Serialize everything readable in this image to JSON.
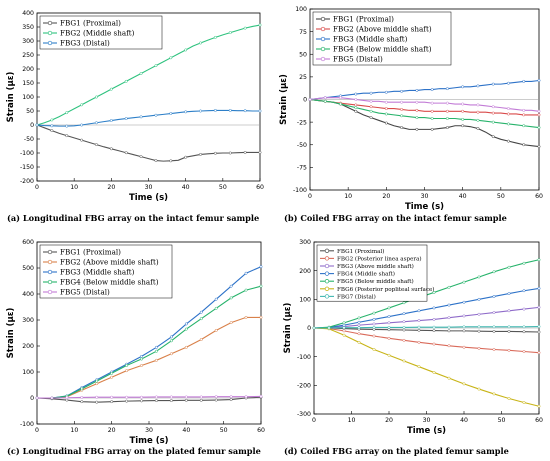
{
  "figure": {
    "captions": [
      "(a) Longitudinal FBG array on the intact femur sample",
      "(b) Coiled FBG array on the intact femur sample",
      "(c) Longitudinal FBG array on the plated femur sample",
      "(d) Coiled FBG array on the plated femur sample"
    ]
  },
  "chart_data": [
    {
      "type": "line",
      "xlabel": "Time (s)",
      "ylabel": "Strain (µε)",
      "xlim": [
        0,
        60
      ],
      "ylim": [
        -200,
        400
      ],
      "xticks": [
        0,
        10,
        20,
        30,
        40,
        50,
        60
      ],
      "yticks": [
        -200,
        -150,
        -100,
        -50,
        0,
        50,
        100,
        150,
        200,
        250,
        300,
        350,
        400
      ],
      "legend_position": "top-left",
      "legend_font_size": 7.2,
      "grid": false,
      "x": [
        0,
        2,
        4,
        6,
        8,
        10,
        12,
        14,
        16,
        18,
        20,
        22,
        24,
        26,
        28,
        30,
        32,
        34,
        36,
        38,
        40,
        42,
        44,
        46,
        48,
        50,
        52,
        54,
        56,
        58,
        60
      ],
      "series": [
        {
          "name": "FBG1 (Proximal)",
          "color": "#555555",
          "values": [
            0,
            -10,
            -20,
            -30,
            -38,
            -46,
            -54,
            -62,
            -70,
            -78,
            -85,
            -92,
            -99,
            -106,
            -113,
            -120,
            -127,
            -129,
            -128,
            -126,
            -115,
            -110,
            -105,
            -103,
            -101,
            -100,
            -100,
            -99,
            -98,
            -98,
            -98
          ]
        },
        {
          "name": "FBG2 (Middle shaft)",
          "color": "#2ec27e",
          "values": [
            0,
            8,
            18,
            30,
            44,
            58,
            72,
            86,
            100,
            114,
            128,
            142,
            156,
            170,
            184,
            198,
            212,
            226,
            240,
            254,
            268,
            282,
            293,
            303,
            313,
            322,
            330,
            338,
            346,
            352,
            357
          ]
        },
        {
          "name": "FBG3 (Distal)",
          "color": "#2d7fc8",
          "values": [
            0,
            -2,
            -3,
            -4,
            -4,
            -3,
            0,
            4,
            8,
            12,
            16,
            20,
            23,
            26,
            29,
            32,
            35,
            38,
            41,
            44,
            47,
            49,
            50,
            51,
            52,
            52,
            52,
            51,
            51,
            50,
            50
          ]
        }
      ]
    },
    {
      "type": "line",
      "xlabel": "Time (s)",
      "ylabel": "Strain (µε)",
      "xlim": [
        0,
        60
      ],
      "ylim": [
        -100,
        100
      ],
      "xticks": [
        0,
        10,
        20,
        30,
        40,
        50,
        60
      ],
      "yticks": [
        -100,
        -75,
        -50,
        -25,
        0,
        25,
        50,
        75,
        100
      ],
      "legend_position": "top-left",
      "legend_font_size": 7.2,
      "grid": false,
      "x": [
        0,
        2,
        4,
        6,
        8,
        10,
        12,
        14,
        16,
        18,
        20,
        22,
        24,
        26,
        28,
        30,
        32,
        34,
        36,
        38,
        40,
        42,
        44,
        46,
        48,
        50,
        52,
        54,
        56,
        58,
        60
      ],
      "series": [
        {
          "name": "FBG1 (Proximal)",
          "color": "#444444",
          "values": [
            0,
            -1,
            -2,
            -3,
            -5,
            -9,
            -13,
            -17,
            -20,
            -23,
            -26,
            -29,
            -31,
            -33,
            -33,
            -33,
            -33,
            -32,
            -31,
            -29,
            -29,
            -30,
            -32,
            -36,
            -41,
            -44,
            -46,
            -48,
            -50,
            -51,
            -52
          ]
        },
        {
          "name": "FBG2 (Above middle shaft)",
          "color": "#d94a4a",
          "values": [
            0,
            -1,
            -2,
            -3,
            -4,
            -5,
            -6,
            -7,
            -8,
            -9,
            -10,
            -10,
            -11,
            -12,
            -12,
            -13,
            -13,
            -13,
            -13,
            -13,
            -13,
            -14,
            -14,
            -14,
            -15,
            -15,
            -16,
            -16,
            -17,
            -17,
            -17
          ]
        },
        {
          "name": "FBG3 (Middle shaft)",
          "color": "#2d72c8",
          "values": [
            0,
            1,
            2,
            3,
            4,
            5,
            6,
            7,
            7,
            8,
            8,
            9,
            9,
            10,
            10,
            11,
            11,
            12,
            12,
            13,
            14,
            14,
            15,
            16,
            17,
            17,
            18,
            19,
            20,
            20,
            21
          ]
        },
        {
          "name": "FBG4 (Below middle shaft)",
          "color": "#27b36b",
          "values": [
            0,
            -1,
            -2,
            -3,
            -5,
            -7,
            -9,
            -11,
            -13,
            -15,
            -16,
            -17,
            -18,
            -19,
            -20,
            -20,
            -21,
            -21,
            -21,
            -21,
            -22,
            -22,
            -23,
            -24,
            -25,
            -26,
            -27,
            -28,
            -29,
            -30,
            -31
          ]
        },
        {
          "name": "FBG5 (Distal)",
          "color": "#c27bd6",
          "values": [
            0,
            1,
            2,
            2,
            2,
            1,
            0,
            -1,
            -2,
            -2,
            -3,
            -3,
            -3,
            -3,
            -3,
            -3,
            -4,
            -4,
            -4,
            -5,
            -5,
            -6,
            -6,
            -7,
            -8,
            -9,
            -10,
            -11,
            -12,
            -12,
            -13
          ]
        }
      ]
    },
    {
      "type": "line",
      "xlabel": "Time (s)",
      "ylabel": "Strain (µε)",
      "xlim": [
        0,
        60
      ],
      "ylim": [
        -100,
        600
      ],
      "xticks": [
        0,
        10,
        20,
        30,
        40,
        50,
        60
      ],
      "yticks": [
        -100,
        0,
        100,
        200,
        300,
        400,
        500,
        600
      ],
      "legend_position": "top-left",
      "legend_font_size": 7.2,
      "grid": false,
      "x": [
        0,
        4,
        8,
        12,
        16,
        20,
        24,
        28,
        32,
        36,
        40,
        44,
        48,
        52,
        56,
        60
      ],
      "series": [
        {
          "name": "FBG1 (Proximal)",
          "color": "#555555",
          "values": [
            0,
            -3,
            -8,
            -14,
            -16,
            -14,
            -12,
            -11,
            -10,
            -10,
            -9,
            -9,
            -8,
            -6,
            0,
            3
          ]
        },
        {
          "name": "FBG2 (Above middle shaft)",
          "color": "#d9814a",
          "values": [
            0,
            0,
            5,
            30,
            55,
            80,
            105,
            125,
            145,
            170,
            195,
            225,
            260,
            290,
            310,
            310
          ]
        },
        {
          "name": "FBG3 (Middle shaft)",
          "color": "#2d72c8",
          "values": [
            0,
            0,
            8,
            40,
            70,
            100,
            130,
            160,
            195,
            235,
            285,
            330,
            380,
            430,
            480,
            505
          ]
        },
        {
          "name": "FBG4 (Below middle shaft)",
          "color": "#27b36b",
          "values": [
            0,
            0,
            7,
            35,
            65,
            95,
            125,
            150,
            180,
            220,
            265,
            305,
            345,
            385,
            415,
            430
          ]
        },
        {
          "name": "FBG5 (Distal)",
          "color": "#c27bd6",
          "values": [
            0,
            0,
            1,
            2,
            3,
            3,
            3,
            3,
            4,
            4,
            4,
            4,
            5,
            5,
            5,
            6
          ]
        }
      ]
    },
    {
      "type": "line",
      "xlabel": "Time (s)",
      "ylabel": "Strain (µε)",
      "xlim": [
        0,
        60
      ],
      "ylim": [
        -300,
        300
      ],
      "xticks": [
        0,
        10,
        20,
        30,
        40,
        50,
        60
      ],
      "yticks": [
        -300,
        -200,
        -100,
        0,
        100,
        200,
        300
      ],
      "legend_position": "top-left",
      "legend_font_size": 5.6,
      "grid": false,
      "x": [
        0,
        4,
        8,
        12,
        16,
        20,
        24,
        28,
        32,
        36,
        40,
        44,
        48,
        52,
        56,
        60
      ],
      "series": [
        {
          "name": "FBG1 (Proximal)",
          "color": "#555555",
          "values": [
            0,
            0,
            -2,
            -4,
            -5,
            -6,
            -7,
            -8,
            -9,
            -10,
            -10,
            -11,
            -12,
            -12,
            -13,
            -14
          ]
        },
        {
          "name": "FBG2 (Posterior linea aspera)",
          "color": "#d96a5a",
          "values": [
            0,
            -2,
            -10,
            -20,
            -28,
            -36,
            -43,
            -50,
            -56,
            -62,
            -67,
            -71,
            -75,
            -78,
            -82,
            -86
          ]
        },
        {
          "name": "FBG3 (Above middle shaft)",
          "color": "#8f6bc9",
          "values": [
            0,
            1,
            5,
            10,
            14,
            18,
            22,
            26,
            30,
            36,
            42,
            48,
            54,
            60,
            66,
            72
          ]
        },
        {
          "name": "FBG4 (Middle shaft)",
          "color": "#2d72c8",
          "values": [
            0,
            2,
            10,
            20,
            30,
            40,
            50,
            60,
            70,
            80,
            90,
            100,
            110,
            120,
            130,
            138
          ]
        },
        {
          "name": "FBG5 (Below middle shaft)",
          "color": "#27b36b",
          "values": [
            0,
            3,
            18,
            35,
            52,
            70,
            88,
            106,
            124,
            142,
            160,
            178,
            196,
            212,
            226,
            238
          ]
        },
        {
          "name": "FBG6 (Posterior popliteal surface)",
          "color": "#c8b416",
          "values": [
            0,
            -3,
            -25,
            -50,
            -75,
            -95,
            -115,
            -135,
            -155,
            -175,
            -195,
            -213,
            -230,
            -246,
            -260,
            -273
          ]
        },
        {
          "name": "FBG7 (Distal)",
          "color": "#3fb7b0",
          "values": [
            0,
            0,
            1,
            1,
            2,
            2,
            2,
            3,
            3,
            3,
            4,
            4,
            4,
            4,
            4,
            5
          ]
        }
      ]
    }
  ]
}
